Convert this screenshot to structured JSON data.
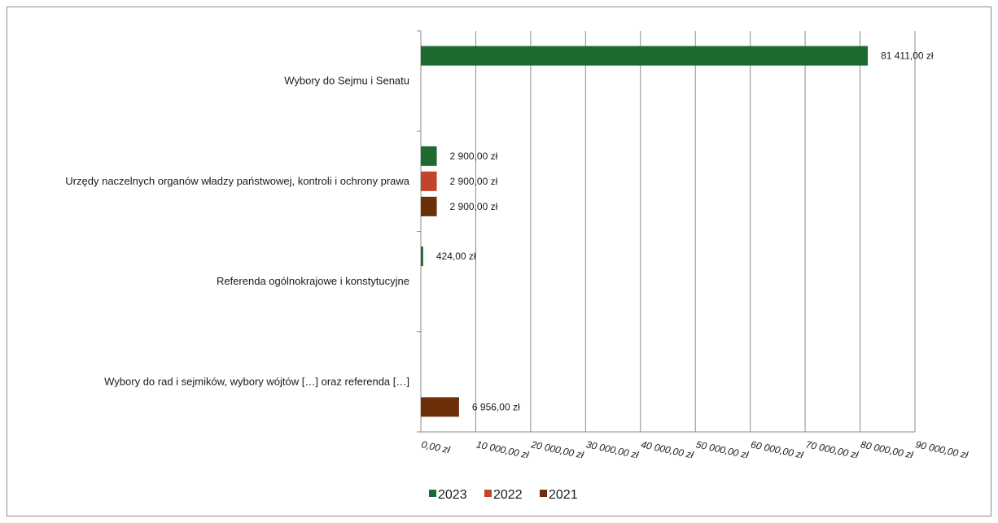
{
  "chart_data": {
    "type": "bar",
    "orientation": "horizontal",
    "categories": [
      "Wybory do Sejmu i Senatu",
      "Urzędy naczelnych organów władzy państwowej, kontroli i ochrony prawa",
      "Referenda ogólnokrajowe i konstytucyjne",
      "Wybory do rad i sejmików, wybory wójtów […] oraz referenda […]"
    ],
    "series": [
      {
        "name": "2023",
        "color": "#1e6b30",
        "values": [
          81411,
          2900,
          424,
          null
        ],
        "labels": [
          "81 411,00 zł",
          "2 900,00 zł",
          "424,00 zł",
          ""
        ]
      },
      {
        "name": "2022",
        "color": "#c0452c",
        "values": [
          null,
          2900,
          null,
          null
        ],
        "labels": [
          "",
          "2 900,00 zł",
          "",
          ""
        ]
      },
      {
        "name": "2021",
        "color": "#6b2f0a",
        "values": [
          null,
          2900,
          null,
          6956
        ],
        "labels": [
          "",
          "2 900,00 zł",
          "",
          "6 956,00 zł"
        ]
      }
    ],
    "xlim": [
      0,
      90000
    ],
    "xticks": [
      0,
      10000,
      20000,
      30000,
      40000,
      50000,
      60000,
      70000,
      80000,
      90000
    ],
    "xtick_labels": [
      "0,00 zł",
      "10 000,00 zł",
      "20 000,00 zł",
      "30 000,00 zł",
      "40 000,00 zł",
      "50 000,00 zł",
      "60 000,00 zł",
      "70 000,00 zł",
      "80 000,00 zł",
      "90 000,00 zł"
    ],
    "grid": "vertical",
    "legend_position": "bottom"
  }
}
